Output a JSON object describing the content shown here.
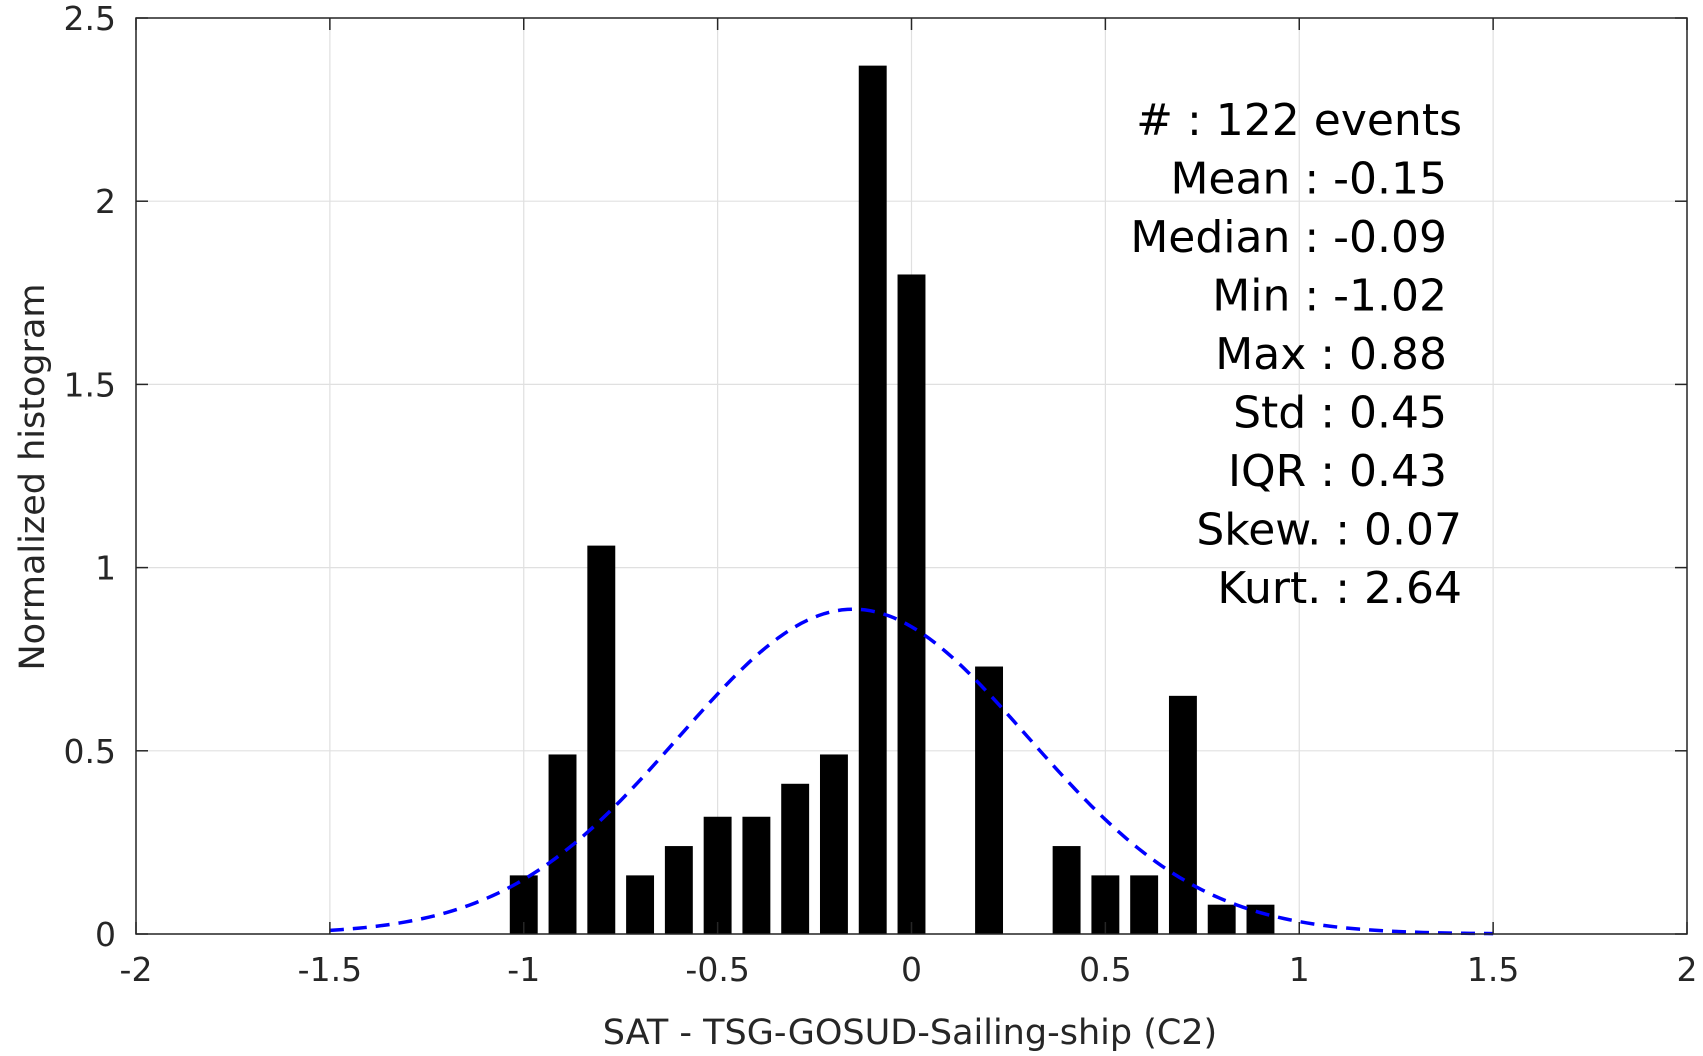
{
  "chart_data": {
    "type": "bar",
    "xlabel": "SAT - TSG-GOSUD-Sailing-ship (C2)",
    "ylabel": "Normalized histogram",
    "xlim": [
      -2,
      2
    ],
    "ylim": [
      0,
      2.5
    ],
    "grid": true,
    "x_ticks": [
      "-2",
      "-1.5",
      "-1",
      "-0.5",
      "0",
      "0.5",
      "1",
      "1.5",
      "2"
    ],
    "y_ticks": [
      "0",
      "0.5",
      "1",
      "1.5",
      "2",
      "2.5"
    ],
    "bin_width": 0.1,
    "bars": [
      {
        "x": -1.0,
        "value": 0.16
      },
      {
        "x": -0.9,
        "value": 0.49
      },
      {
        "x": -0.8,
        "value": 1.06
      },
      {
        "x": -0.7,
        "value": 0.16
      },
      {
        "x": -0.6,
        "value": 0.24
      },
      {
        "x": -0.5,
        "value": 0.32
      },
      {
        "x": -0.4,
        "value": 0.32
      },
      {
        "x": -0.3,
        "value": 0.41
      },
      {
        "x": -0.2,
        "value": 0.49
      },
      {
        "x": -0.1,
        "value": 2.37
      },
      {
        "x": 0.0,
        "value": 1.8
      },
      {
        "x": 0.2,
        "value": 0.73
      },
      {
        "x": 0.4,
        "value": 0.24
      },
      {
        "x": 0.5,
        "value": 0.16
      },
      {
        "x": 0.6,
        "value": 0.16
      },
      {
        "x": 0.7,
        "value": 0.65
      },
      {
        "x": 0.8,
        "value": 0.08
      },
      {
        "x": 0.9,
        "value": 0.08
      }
    ],
    "fit_curve": {
      "style": "dashed",
      "color": "#0000ff",
      "x_range": [
        -1.5,
        1.5
      ],
      "mean": -0.15,
      "std": 0.45
    },
    "bar_color": "#000000",
    "grid_color": "#e0e0e0",
    "axis_color": "#262626"
  },
  "stats": [
    {
      "label": "#  ",
      "value": ": 122 events"
    },
    {
      "label": "Mean ",
      "value": ": -0.15"
    },
    {
      "label": "Median ",
      "value": ": -0.09"
    },
    {
      "label": "Min ",
      "value": ": -1.02"
    },
    {
      "label": "Max ",
      "value": ": 0.88"
    },
    {
      "label": "Std ",
      "value": ": 0.45"
    },
    {
      "label": "IQR ",
      "value": ": 0.43"
    },
    {
      "label": "Skew. ",
      "value": ": 0.07"
    },
    {
      "label": "Kurt. ",
      "value": ": 2.64"
    }
  ]
}
